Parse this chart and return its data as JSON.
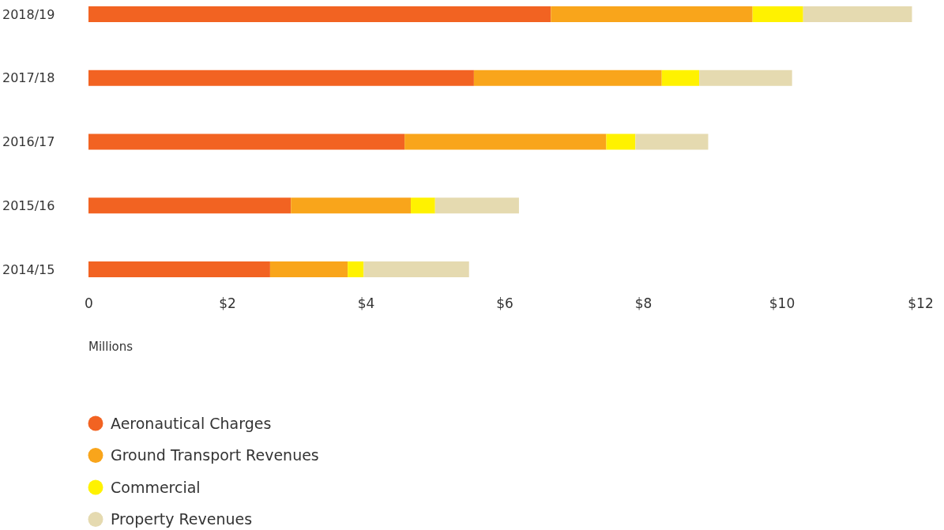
{
  "chart_data": {
    "type": "bar",
    "orientation": "horizontal",
    "stacked": true,
    "categories": [
      "2018/19",
      "2017/18",
      "2016/17",
      "2015/16",
      "2014/15"
    ],
    "series": [
      {
        "name": "Aeronautical Charges",
        "color": "#f26322",
        "values": [
          6.67,
          5.56,
          4.56,
          2.92,
          2.62
        ]
      },
      {
        "name": "Ground Transport Revenues",
        "color": "#f9a51b",
        "values": [
          2.91,
          2.71,
          2.91,
          1.73,
          1.12
        ]
      },
      {
        "name": "Commercial",
        "color": "#fff200",
        "values": [
          0.73,
          0.54,
          0.42,
          0.35,
          0.23
        ]
      },
      {
        "name": "Property Revenues",
        "color": "#e5dab0",
        "values": [
          1.57,
          1.34,
          1.05,
          1.21,
          1.52
        ]
      }
    ],
    "xlim": [
      0,
      12
    ],
    "xticks": [
      0,
      {
        "value": 2,
        "label": "$2"
      },
      {
        "value": 4,
        "label": "$4"
      },
      {
        "value": 6,
        "label": "$6"
      },
      {
        "value": 8,
        "label": "$8"
      },
      {
        "value": 10,
        "label": "$10"
      },
      {
        "value": 12,
        "label": "$12"
      }
    ],
    "xlabel": "Millions",
    "legend": "bottom",
    "grid": false
  }
}
